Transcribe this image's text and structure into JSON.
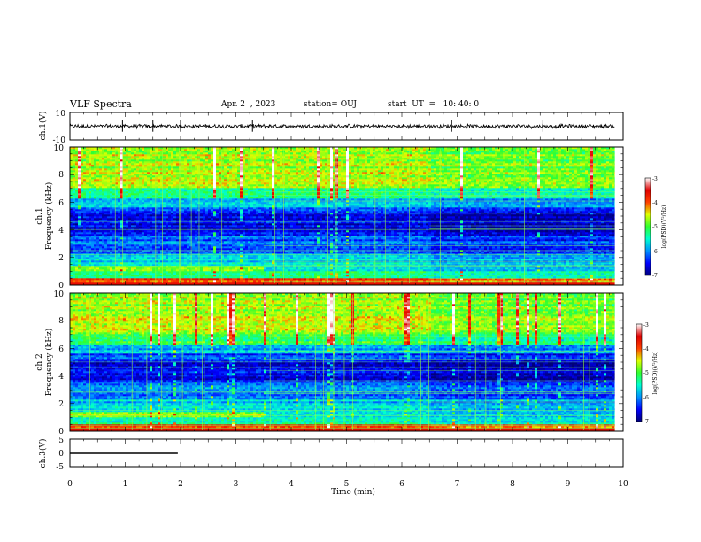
{
  "header": {
    "title": "VLF Spectra",
    "date": "Apr. 2  , 2023",
    "station": "station= OUJ",
    "start_ut": "start  UT  =   10: 40: 0"
  },
  "chart_data": [
    {
      "type": "line",
      "name": "ch1-waveform",
      "ylabel": "ch.1(V)",
      "ylim": [
        -10,
        10
      ],
      "y_ticks": [
        "10",
        "-10"
      ],
      "xlim": [
        0,
        10
      ],
      "data_extent_min": 9.85,
      "waveform": {
        "baseline": 0,
        "noise_amplitude": 1.2,
        "spike_times": [
          0.95,
          1.5,
          2.0,
          3.3,
          6.9,
          8.55
        ]
      }
    },
    {
      "type": "heatmap",
      "name": "ch1-spectrogram",
      "ylabel_line1": "ch.1",
      "ylabel_line2": "Frequency  (kHz)",
      "ylim": [
        0,
        10
      ],
      "y_ticks": [
        "0",
        "2",
        "4",
        "6",
        "8",
        "10"
      ],
      "xlim": [
        0,
        10
      ],
      "data_extent_min": 9.85,
      "time_breaks_min": [
        3.5,
        6.5
      ],
      "colorbar": {
        "label": "log(PSD)(V²/Hz)",
        "ticks": [
          "-3",
          "-4",
          "-5",
          "-6",
          "-7"
        ],
        "range": [
          -7,
          -3
        ],
        "colors": [
          "#00007a",
          "#0000ff",
          "#0090ff",
          "#00ffd0",
          "#30ff30",
          "#e0ff00",
          "#ff4000",
          "#e00000",
          "#ffffff"
        ]
      }
    },
    {
      "type": "heatmap",
      "name": "ch2-spectrogram",
      "ylabel_line1": "ch.2",
      "ylabel_line2": "Frequency  (kHz)",
      "ylim": [
        0,
        10
      ],
      "y_ticks": [
        "0",
        "2",
        "4",
        "6",
        "8",
        "10"
      ],
      "xlim": [
        0,
        10
      ],
      "data_extent_min": 9.85,
      "time_breaks_min": [
        3.5,
        6.5
      ],
      "colorbar": {
        "label": "log(PSD)(V²/Hz)",
        "ticks": [
          "-3",
          "-4",
          "-5",
          "-6",
          "-7"
        ],
        "range": [
          -7,
          -3
        ],
        "colors": [
          "#00007a",
          "#0000ff",
          "#0090ff",
          "#00ffd0",
          "#30ff30",
          "#e0ff00",
          "#ff4000",
          "#e00000",
          "#ffffff"
        ]
      }
    },
    {
      "type": "line",
      "name": "ch3-signal",
      "ylabel": "ch.3(V)",
      "ylim": [
        -5,
        5
      ],
      "y_ticks": [
        "5",
        "0",
        "-5"
      ],
      "xlim": [
        0,
        10
      ],
      "x_ticks": [
        "0",
        "1",
        "2",
        "3",
        "4",
        "5",
        "6",
        "7",
        "8",
        "9",
        "10"
      ],
      "xlabel": "Time  (min)",
      "data_extent_min": 9.85,
      "series": [
        {
          "x": [
            0,
            1.95
          ],
          "y": [
            0,
            0
          ],
          "weight": "thick"
        },
        {
          "x": [
            1.95,
            9.85
          ],
          "y": [
            0,
            0
          ],
          "weight": "thin"
        }
      ]
    }
  ]
}
